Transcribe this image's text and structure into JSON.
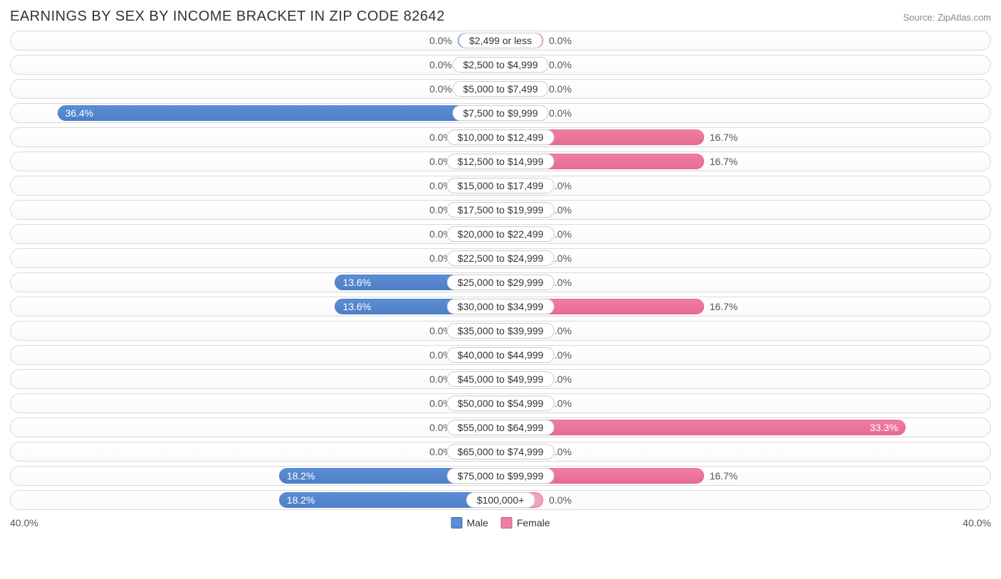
{
  "header": {
    "title": "EARNINGS BY SEX BY INCOME BRACKET IN ZIP CODE 82642",
    "source": "Source: ZipAtlas.com"
  },
  "chart": {
    "type": "diverging-bar",
    "axis_max_pct": 40.0,
    "axis_label_left": "40.0%",
    "axis_label_right": "40.0%",
    "min_bar_pct": 3.5,
    "colors": {
      "male_fill": "#7ba7e0",
      "male_border": "#4f7fc7",
      "male_strong": "#5b8dd6",
      "female_fill": "#f5a3bb",
      "female_border": "#e76b91",
      "female_strong": "#ef7fa2",
      "row_border": "#d9d9d9",
      "label_border": "#cccccc",
      "text_dark": "#333333",
      "text_mid": "#555555",
      "background": "#ffffff"
    },
    "legend": {
      "male": "Male",
      "female": "Female"
    },
    "rows": [
      {
        "label": "$2,499 or less",
        "male_pct": 0.0,
        "female_pct": 0.0
      },
      {
        "label": "$2,500 to $4,999",
        "male_pct": 0.0,
        "female_pct": 0.0
      },
      {
        "label": "$5,000 to $7,499",
        "male_pct": 0.0,
        "female_pct": 0.0
      },
      {
        "label": "$7,500 to $9,999",
        "male_pct": 36.4,
        "female_pct": 0.0
      },
      {
        "label": "$10,000 to $12,499",
        "male_pct": 0.0,
        "female_pct": 16.7
      },
      {
        "label": "$12,500 to $14,999",
        "male_pct": 0.0,
        "female_pct": 16.7
      },
      {
        "label": "$15,000 to $17,499",
        "male_pct": 0.0,
        "female_pct": 0.0
      },
      {
        "label": "$17,500 to $19,999",
        "male_pct": 0.0,
        "female_pct": 0.0
      },
      {
        "label": "$20,000 to $22,499",
        "male_pct": 0.0,
        "female_pct": 0.0
      },
      {
        "label": "$22,500 to $24,999",
        "male_pct": 0.0,
        "female_pct": 0.0
      },
      {
        "label": "$25,000 to $29,999",
        "male_pct": 13.6,
        "female_pct": 0.0
      },
      {
        "label": "$30,000 to $34,999",
        "male_pct": 13.6,
        "female_pct": 16.7
      },
      {
        "label": "$35,000 to $39,999",
        "male_pct": 0.0,
        "female_pct": 0.0
      },
      {
        "label": "$40,000 to $44,999",
        "male_pct": 0.0,
        "female_pct": 0.0
      },
      {
        "label": "$45,000 to $49,999",
        "male_pct": 0.0,
        "female_pct": 0.0
      },
      {
        "label": "$50,000 to $54,999",
        "male_pct": 0.0,
        "female_pct": 0.0
      },
      {
        "label": "$55,000 to $64,999",
        "male_pct": 0.0,
        "female_pct": 33.3
      },
      {
        "label": "$65,000 to $74,999",
        "male_pct": 0.0,
        "female_pct": 0.0
      },
      {
        "label": "$75,000 to $99,999",
        "male_pct": 18.2,
        "female_pct": 16.7
      },
      {
        "label": "$100,000+",
        "male_pct": 18.2,
        "female_pct": 0.0
      }
    ]
  }
}
